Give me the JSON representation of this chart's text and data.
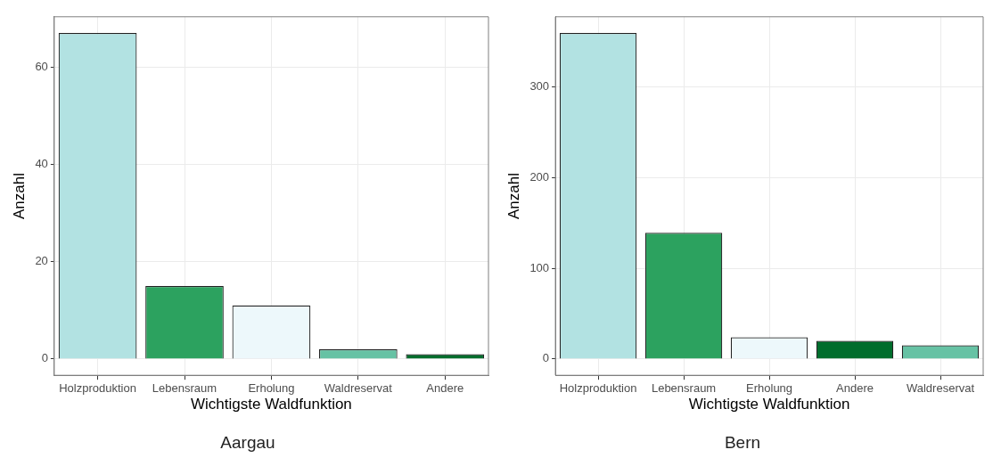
{
  "chart_data": [
    {
      "type": "bar",
      "title": "Aargau",
      "xlabel": "Wichtigste Waldfunktion",
      "ylabel": "Anzahl",
      "categories": [
        "Holzproduktion",
        "Lebensraum",
        "Erholung",
        "Waldreservat",
        "Andere"
      ],
      "values": [
        67,
        15,
        11,
        2,
        1
      ],
      "colors": [
        "#b2e2e2",
        "#2ca25f",
        "#edf8fb",
        "#66c2a4",
        "#006d2c"
      ],
      "ylim": [
        -3.35,
        70.35
      ],
      "yticks": [
        0,
        20,
        40,
        60
      ],
      "grid": true
    },
    {
      "type": "bar",
      "title": "Bern",
      "xlabel": "Wichtigste Waldfunktion",
      "ylabel": "Anzahl",
      "categories": [
        "Holzproduktion",
        "Lebensraum",
        "Erholung",
        "Andere",
        "Waldreservat"
      ],
      "values": [
        359,
        139,
        24,
        20,
        15
      ],
      "colors": [
        "#b2e2e2",
        "#2ca25f",
        "#edf8fb",
        "#006d2c",
        "#66c2a4"
      ],
      "ylim": [
        -17.95,
        376.95
      ],
      "yticks": [
        0,
        100,
        200,
        300
      ],
      "grid": true
    }
  ]
}
